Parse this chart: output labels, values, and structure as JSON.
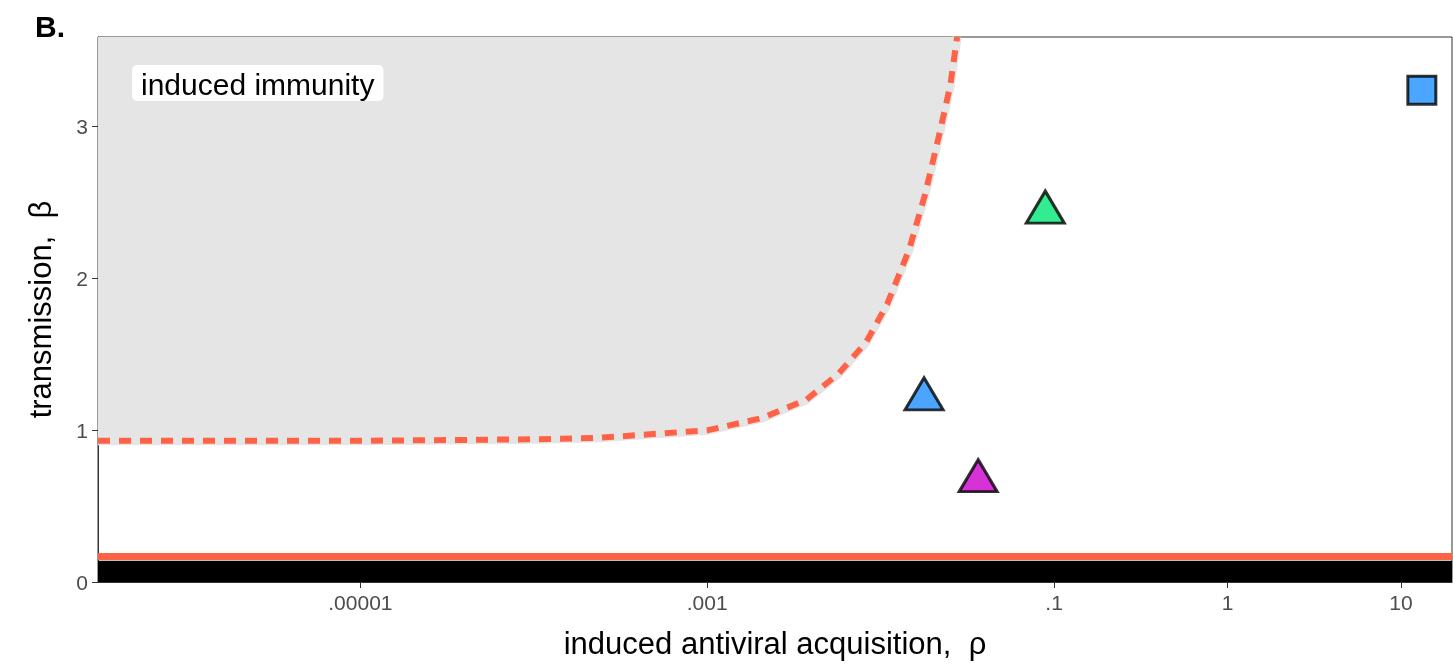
{
  "chart_data": {
    "type": "scatter",
    "title": "B.",
    "xlabel": "induced antiviral acquisition,  ρ",
    "ylabel": "transmission,  β",
    "log": "x",
    "grid": false,
    "xlim": [
      3.07e-07,
      19.7
    ],
    "xticks": [
      {
        "value": 1e-05,
        "label": ".00001"
      },
      {
        "value": 0.001,
        "label": ".001"
      },
      {
        "value": 0.1,
        "label": ".1"
      },
      1,
      10
    ],
    "ylim": [
      0,
      3.59
    ],
    "yticks": [
      0,
      1,
      2,
      3
    ],
    "annotations": [
      "induced immunity"
    ],
    "bands": [
      {
        "axis": "y",
        "from": 0,
        "to": 0.14,
        "color": "#000000"
      }
    ],
    "ref_lines": [
      {
        "axis": "y",
        "value": 0.17,
        "color": "#ff6347",
        "line_style": "solid"
      }
    ],
    "series": [
      {
        "type": "line",
        "color": "#e5e5e5",
        "line_style": "solid",
        "marker": "none",
        "x": [
          3.07e-07,
          1e-05,
          0.0001,
          0.000239,
          0.00101,
          0.00207,
          0.00372,
          0.00569,
          0.00825,
          0.0109,
          0.0146,
          0.018,
          0.0217,
          0.0252,
          0.0276
        ],
        "values": [
          0.93,
          0.93,
          0.94,
          0.95,
          1.0,
          1.08,
          1.2,
          1.37,
          1.58,
          1.83,
          2.19,
          2.55,
          2.94,
          3.27,
          3.59
        ],
        "lower": [
          0.93,
          0.93,
          0.94,
          0.95,
          1.0,
          1.08,
          1.2,
          1.37,
          1.58,
          1.83,
          2.19,
          2.55,
          2.94,
          3.27,
          3.59
        ],
        "upper": [
          3.59,
          3.59,
          3.59,
          3.59,
          3.59,
          3.59,
          3.59,
          3.59,
          3.59,
          3.59,
          3.59,
          3.59,
          3.59,
          3.59,
          3.59
        ]
      },
      {
        "type": "line",
        "color": "#ff6347",
        "line_style": "dashed",
        "marker": "none",
        "x": [
          3.07e-07,
          1e-05,
          0.0001,
          0.000239,
          0.00101,
          0.00207,
          0.00372,
          0.00569,
          0.00825,
          0.0109,
          0.0146,
          0.018,
          0.0217,
          0.0252,
          0.0276
        ],
        "values": [
          0.93,
          0.93,
          0.94,
          0.95,
          1.0,
          1.08,
          1.2,
          1.37,
          1.58,
          1.83,
          2.19,
          2.55,
          2.94,
          3.27,
          3.59
        ]
      },
      {
        "color": "#1e90ff",
        "marker": "square",
        "x": [
          13.2
        ],
        "values": [
          3.24
        ]
      },
      {
        "color": "#00e676",
        "marker": "triangle",
        "x": [
          0.089
        ],
        "values": [
          2.47
        ]
      },
      {
        "color": "#1e8fff",
        "marker": "triangle",
        "x": [
          0.0178
        ],
        "values": [
          1.24
        ]
      },
      {
        "color": "#cc00cc",
        "marker": "triangle",
        "x": [
          0.0365
        ],
        "values": [
          0.7
        ]
      }
    ]
  }
}
